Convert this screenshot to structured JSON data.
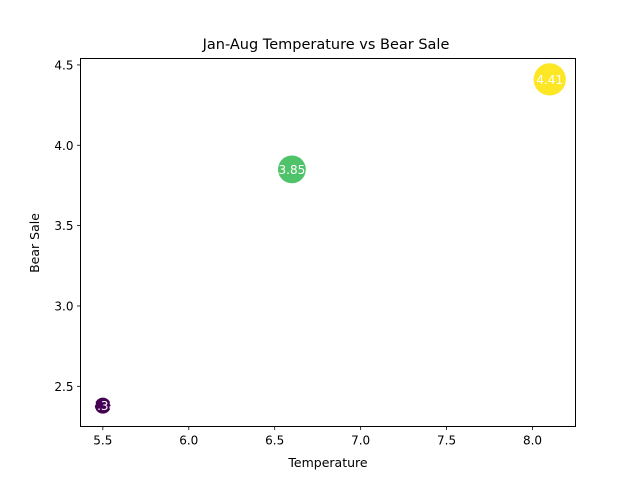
{
  "chart_data": {
    "type": "scatter",
    "title": "Jan-Aug Temperature vs Bear Sale",
    "xlabel": "Temperature",
    "ylabel": "Bear Sale",
    "xlim": [
      5.37,
      8.25
    ],
    "ylim": [
      2.25,
      4.54
    ],
    "x_ticks": [
      5.5,
      6.0,
      6.5,
      7.0,
      7.5,
      8.0
    ],
    "x_tick_labels": [
      "5.5",
      "6.0",
      "6.5",
      "7.0",
      "7.5",
      "8.0"
    ],
    "y_ticks": [
      2.5,
      3.0,
      3.5,
      4.0,
      4.5
    ],
    "y_tick_labels": [
      "2.5",
      "3.0",
      "3.5",
      "4.0",
      "4.5"
    ],
    "grid": false,
    "points": [
      {
        "x": 5.5,
        "y": 2.38,
        "label": "2.38",
        "color": "#440154",
        "size_value": 2.38
      },
      {
        "x": 6.6,
        "y": 3.85,
        "label": "3.85",
        "color": "#4fc36a",
        "size_value": 3.85
      },
      {
        "x": 8.1,
        "y": 4.41,
        "label": "4.41",
        "color": "#fde725",
        "size_value": 4.41
      }
    ]
  }
}
